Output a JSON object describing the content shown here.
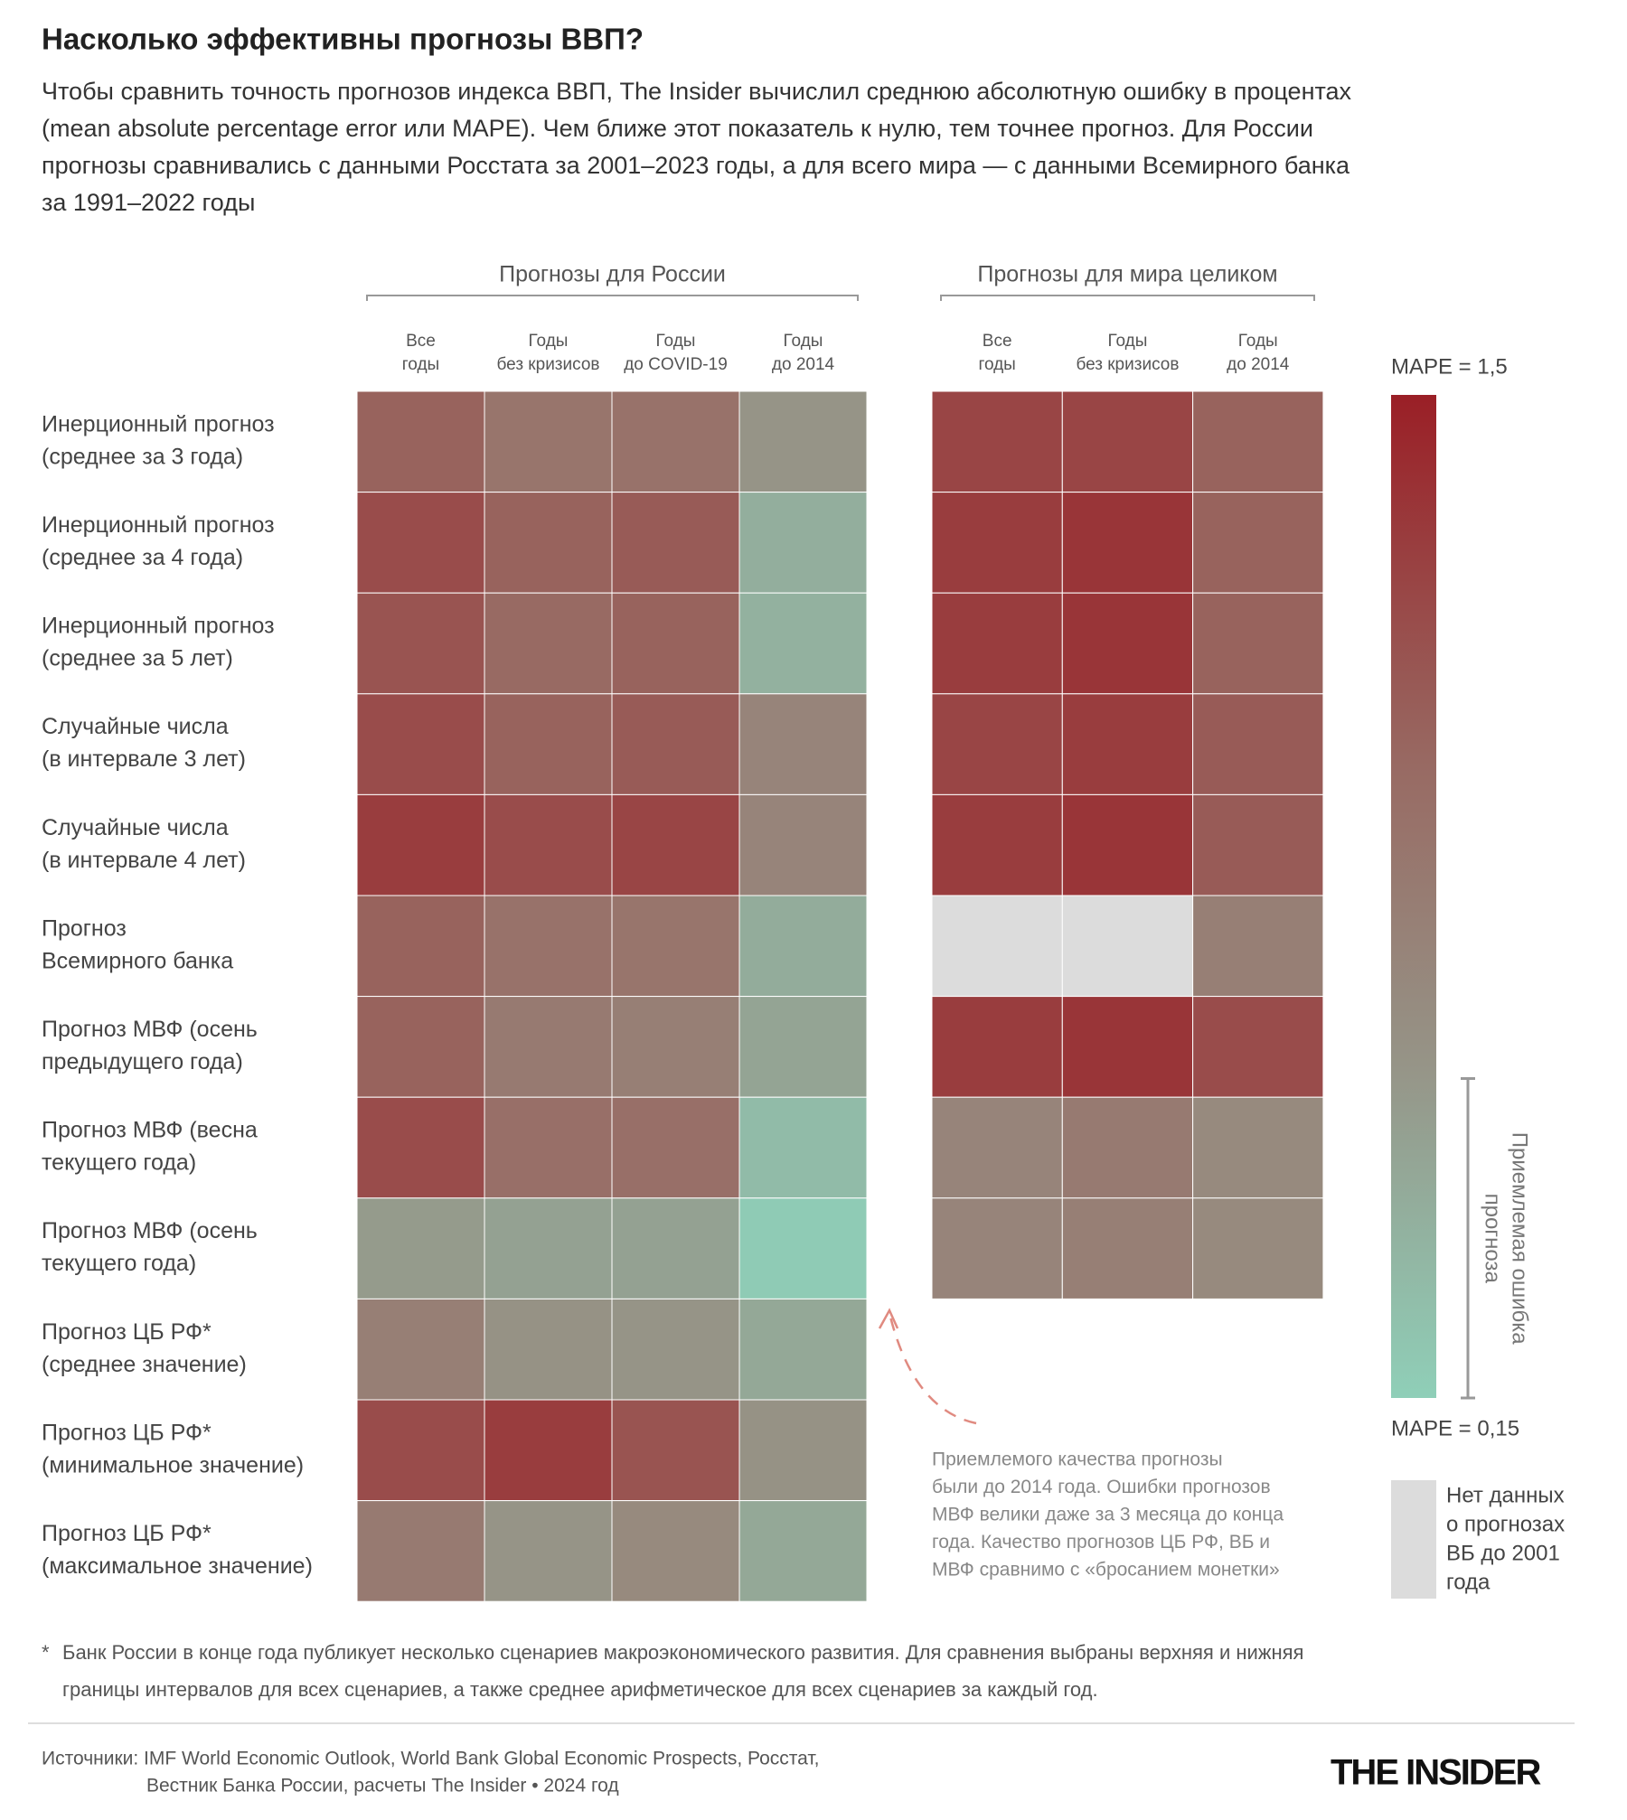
{
  "chart_data": {
    "type": "heatmap",
    "title": "Насколько эффективны прогнозы ВВП?",
    "subtitle": [
      "Чтобы сравнить точность прогнозов индекса ВВП, The Insider вычислил среднюю абсолютную ошибку в процентах",
      "(mean absolute percentage error или MAPE). Чем ближе этот показатель к нулю, тем точнее прогноз. Для России",
      "прогнозы сравнивались с данными Росстата за 2001–2023 годы, а для всего мира — с данными Всемирного банка",
      "за 1991–2022 годы"
    ],
    "rows": [
      [
        "Инерционный прогноз",
        "(среднее за 3 года)"
      ],
      [
        "Инерционный прогноз",
        "(среднее за 4 года)"
      ],
      [
        "Инерционный прогноз",
        "(среднее за 5 лет)"
      ],
      [
        "Случайные числа",
        "(в интервале 3 лет)"
      ],
      [
        "Случайные числа",
        "(в интервале 4 лет)"
      ],
      [
        "Прогноз",
        "Всемирного банка"
      ],
      [
        "Прогноз МВФ (осень",
        "предыдущего года)"
      ],
      [
        "Прогноз МВФ (весна",
        "текущего года)"
      ],
      [
        "Прогноз МВФ (осень",
        "текущего года)"
      ],
      [
        "Прогноз ЦБ РФ*",
        "(среднее значение)"
      ],
      [
        "Прогноз ЦБ РФ*",
        "(минимальное значение)"
      ],
      [
        "Прогноз ЦБ РФ*",
        "(максимальное значение)"
      ]
    ],
    "panels": [
      {
        "title": "Прогнозы для России",
        "columns": [
          [
            "Все",
            "годы"
          ],
          [
            "Годы",
            "без кризисов"
          ],
          [
            "Годы",
            "до COVID-19"
          ],
          [
            "Годы",
            "до 2014"
          ]
        ],
        "values": [
          [
            1.05,
            0.9,
            0.92,
            0.6
          ],
          [
            1.2,
            1.05,
            1.1,
            0.4
          ],
          [
            1.15,
            1.0,
            1.05,
            0.38
          ],
          [
            1.2,
            1.05,
            1.1,
            0.75
          ],
          [
            1.3,
            1.2,
            1.25,
            0.75
          ],
          [
            1.05,
            0.92,
            0.9,
            0.42
          ],
          [
            1.05,
            0.85,
            0.8,
            0.48
          ],
          [
            1.2,
            0.95,
            0.95,
            0.3
          ],
          [
            0.55,
            0.5,
            0.5,
            0.18
          ],
          [
            0.8,
            0.62,
            0.6,
            0.45
          ],
          [
            1.2,
            1.3,
            1.15,
            0.62
          ],
          [
            0.85,
            0.6,
            0.7,
            0.45
          ]
        ]
      },
      {
        "title": "Прогнозы для мира целиком",
        "columns": [
          [
            "Все",
            "годы"
          ],
          [
            "Годы",
            "без кризисов"
          ],
          [
            "Годы",
            "до 2014"
          ]
        ],
        "values": [
          [
            1.25,
            1.25,
            1.05
          ],
          [
            1.3,
            1.35,
            1.05
          ],
          [
            1.3,
            1.35,
            1.05
          ],
          [
            1.25,
            1.3,
            1.1
          ],
          [
            1.3,
            1.35,
            1.1
          ],
          [
            null,
            null,
            0.8
          ],
          [
            1.3,
            1.35,
            1.2
          ],
          [
            0.75,
            0.85,
            0.7
          ],
          [
            0.75,
            0.8,
            0.7
          ]
        ]
      }
    ],
    "zlim": [
      0.15,
      1.5
    ],
    "zticks": [
      {
        "value": 1.5,
        "label": "MAPE = 1,5"
      },
      {
        "value": 0.15,
        "label": "MAPE = 0,15"
      }
    ],
    "color_stops": [
      [
        0.15,
        "#8fcfb8"
      ],
      [
        0.6,
        "#969487"
      ],
      [
        1.0,
        "#986a63"
      ],
      [
        1.5,
        "#9a1f26"
      ]
    ],
    "acceptable_range": [
      0.15,
      0.58
    ],
    "acceptable_label": [
      "Приемлемая ошибка",
      "прогноза"
    ],
    "no_data_color": "#dcdcdc",
    "no_data_label": [
      "Нет данных",
      "о прогнозах",
      "ВБ до 2001",
      "года"
    ],
    "annotation": [
      "Приемлемого качества прогнозы",
      "были до 2014 года. Ошибки прогнозов",
      "МВФ велики даже за 3 месяца до конца",
      "года. Качество прогнозов ЦБ РФ, ВБ и",
      "МВФ сравнимо с «бросанием монетки»"
    ],
    "footnote_mark": "*",
    "footnote": [
      "Банк России в конце года публикует несколько сценариев макроэкономического развития. Для сравнения выбраны верхняя и нижняя",
      "границы интервалов для всех сценариев, а также среднее арифметическое для всех сценариев за каждый год."
    ],
    "sources": [
      "Источники: IMF World Economic Outlook, World Bank Global Economic Prospects, Росстат,",
      "Вестник Банка России, расчеты The Insider • 2024 год"
    ],
    "logo": "THE INSIDER"
  }
}
